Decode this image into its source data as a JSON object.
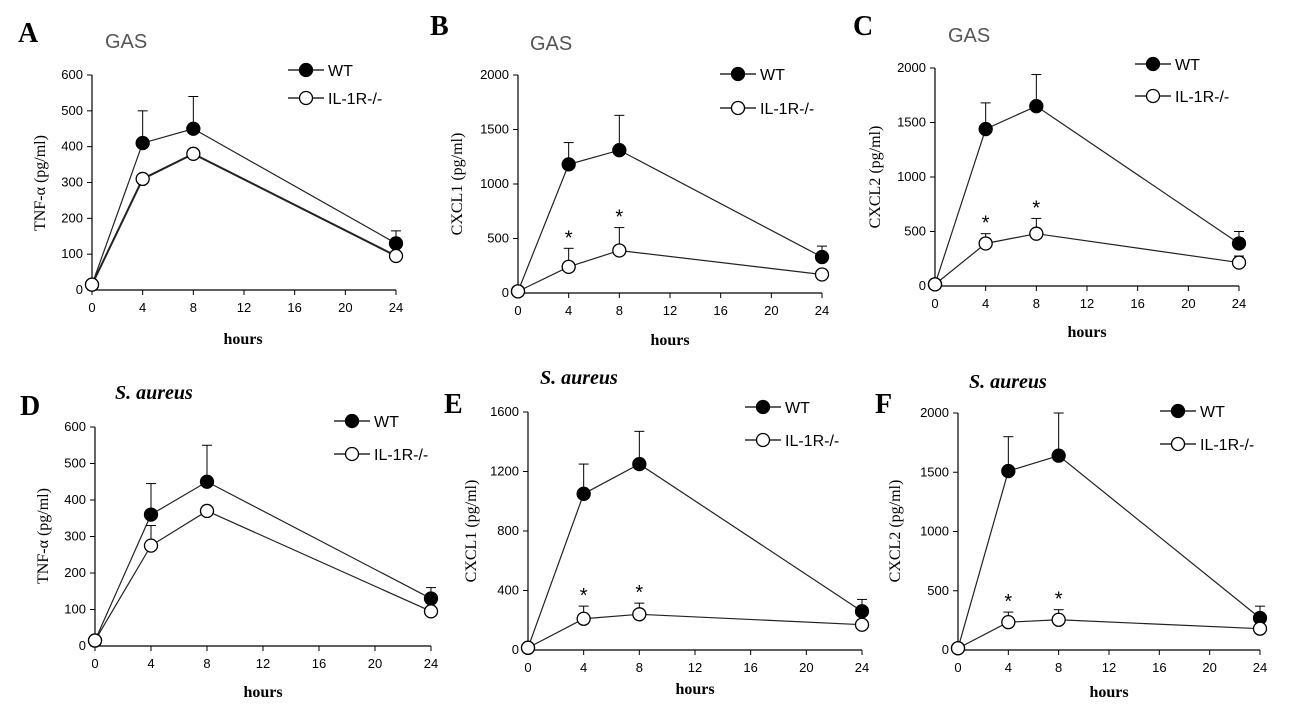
{
  "chart_data": [
    {
      "panel": "A",
      "type": "line",
      "title": "GAS",
      "title_italic": false,
      "xlabel": "hours",
      "ylabel": "TNF-α (pg/ml)",
      "ylabel_color": "#000000",
      "x": [
        0,
        4,
        8,
        24
      ],
      "xticks": [
        "0",
        "4",
        "8",
        "12",
        "16",
        "20",
        "24"
      ],
      "xlim": [
        0,
        24
      ],
      "yticks": [
        "0",
        "100",
        "200",
        "300",
        "400",
        "500",
        "600"
      ],
      "ylim": [
        0,
        600
      ],
      "series": [
        {
          "name": "WT",
          "marker": "filled",
          "values": [
            15,
            410,
            450,
            130
          ],
          "errors": [
            0,
            90,
            90,
            35
          ]
        },
        {
          "name": "IL-1R-/-",
          "marker": "open",
          "values": [
            15,
            310,
            380,
            95
          ],
          "errors": [
            0,
            0,
            0,
            0
          ]
        }
      ],
      "significance": []
    },
    {
      "panel": "B",
      "type": "line",
      "title": "GAS",
      "title_italic": false,
      "xlabel": "hours",
      "ylabel": "CXCL1 (pg/ml)",
      "ylabel_color": "#555555",
      "x": [
        0,
        4,
        8,
        24
      ],
      "xticks": [
        "0",
        "4",
        "8",
        "12",
        "16",
        "20",
        "24"
      ],
      "xlim": [
        0,
        24
      ],
      "yticks": [
        "0",
        "500",
        "1000",
        "1500",
        "2000"
      ],
      "ylim": [
        0,
        2000
      ],
      "series": [
        {
          "name": "WT",
          "marker": "filled",
          "values": [
            15,
            1180,
            1310,
            330
          ],
          "errors": [
            0,
            200,
            320,
            100
          ]
        },
        {
          "name": "IL-1R-/-",
          "marker": "open",
          "values": [
            15,
            240,
            390,
            170
          ],
          "errors": [
            0,
            170,
            210,
            0
          ]
        }
      ],
      "significance": [
        {
          "x": 4,
          "label": "*"
        },
        {
          "x": 8,
          "label": "*"
        }
      ]
    },
    {
      "panel": "C",
      "type": "line",
      "title": "GAS",
      "title_italic": false,
      "xlabel": "hours",
      "ylabel": "CXCL2 (pg/ml)",
      "ylabel_color": "#555555",
      "x": [
        0,
        4,
        8,
        24
      ],
      "xticks": [
        "0",
        "4",
        "8",
        "12",
        "16",
        "20",
        "24"
      ],
      "xlim": [
        0,
        24
      ],
      "yticks": [
        "0",
        "500",
        "1000",
        "1500",
        "2000"
      ],
      "ylim": [
        0,
        2000
      ],
      "series": [
        {
          "name": "WT",
          "marker": "filled",
          "values": [
            15,
            1440,
            1650,
            390
          ],
          "errors": [
            0,
            240,
            290,
            110
          ]
        },
        {
          "name": "IL-1R-/-",
          "marker": "open",
          "values": [
            15,
            390,
            480,
            215
          ],
          "errors": [
            0,
            90,
            140,
            60
          ]
        }
      ],
      "significance": [
        {
          "x": 4,
          "label": "*"
        },
        {
          "x": 8,
          "label": "*"
        }
      ]
    },
    {
      "panel": "D",
      "type": "line",
      "title": "S. aureus",
      "title_italic": true,
      "xlabel": "hours",
      "ylabel": "TNF-α (pg/ml)",
      "ylabel_color": "#555555",
      "x": [
        0,
        4,
        8,
        24
      ],
      "xticks": [
        "0",
        "4",
        "8",
        "12",
        "16",
        "20",
        "24"
      ],
      "xlim": [
        0,
        24
      ],
      "yticks": [
        "0",
        "100",
        "200",
        "300",
        "400",
        "500",
        "600"
      ],
      "ylim": [
        0,
        600
      ],
      "series": [
        {
          "name": "WT",
          "marker": "filled",
          "values": [
            15,
            360,
            450,
            130
          ],
          "errors": [
            0,
            85,
            100,
            30
          ]
        },
        {
          "name": "IL-1R-/-",
          "marker": "open",
          "values": [
            15,
            275,
            370,
            95
          ],
          "errors": [
            0,
            55,
            0,
            0
          ]
        }
      ],
      "significance": []
    },
    {
      "panel": "E",
      "type": "line",
      "title": "S. aureus",
      "title_italic": true,
      "xlabel": "hours",
      "ylabel": "CXCL1 (pg/ml)",
      "ylabel_color": "#000000",
      "x": [
        0,
        4,
        8,
        24
      ],
      "xticks": [
        "0",
        "4",
        "8",
        "12",
        "16",
        "20",
        "24"
      ],
      "xlim": [
        0,
        24
      ],
      "yticks": [
        "0",
        "400",
        "800",
        "1200",
        "1600"
      ],
      "ylim": [
        0,
        1600
      ],
      "series": [
        {
          "name": "WT",
          "marker": "filled",
          "values": [
            15,
            1050,
            1250,
            260
          ],
          "errors": [
            0,
            200,
            220,
            80
          ]
        },
        {
          "name": "IL-1R-/-",
          "marker": "open",
          "values": [
            15,
            210,
            240,
            170
          ],
          "errors": [
            0,
            85,
            75,
            0
          ]
        }
      ],
      "significance": [
        {
          "x": 4,
          "label": "*"
        },
        {
          "x": 8,
          "label": "*"
        }
      ]
    },
    {
      "panel": "F",
      "type": "line",
      "title": "S. aureus",
      "title_italic": true,
      "xlabel": "hours",
      "ylabel": "CXCL2 (pg/ml)",
      "ylabel_color": "#000000",
      "x": [
        0,
        4,
        8,
        24
      ],
      "xticks": [
        "0",
        "4",
        "8",
        "12",
        "16",
        "20",
        "24"
      ],
      "xlim": [
        0,
        24
      ],
      "yticks": [
        "0",
        "500",
        "1000",
        "1500",
        "2000"
      ],
      "ylim": [
        0,
        2000
      ],
      "series": [
        {
          "name": "WT",
          "marker": "filled",
          "values": [
            15,
            1510,
            1640,
            270
          ],
          "errors": [
            0,
            290,
            360,
            100
          ]
        },
        {
          "name": "IL-1R-/-",
          "marker": "open",
          "values": [
            15,
            235,
            255,
            180
          ],
          "errors": [
            0,
            85,
            85,
            0
          ]
        }
      ],
      "significance": [
        {
          "x": 4,
          "label": "*"
        },
        {
          "x": 8,
          "label": "*"
        }
      ]
    }
  ]
}
